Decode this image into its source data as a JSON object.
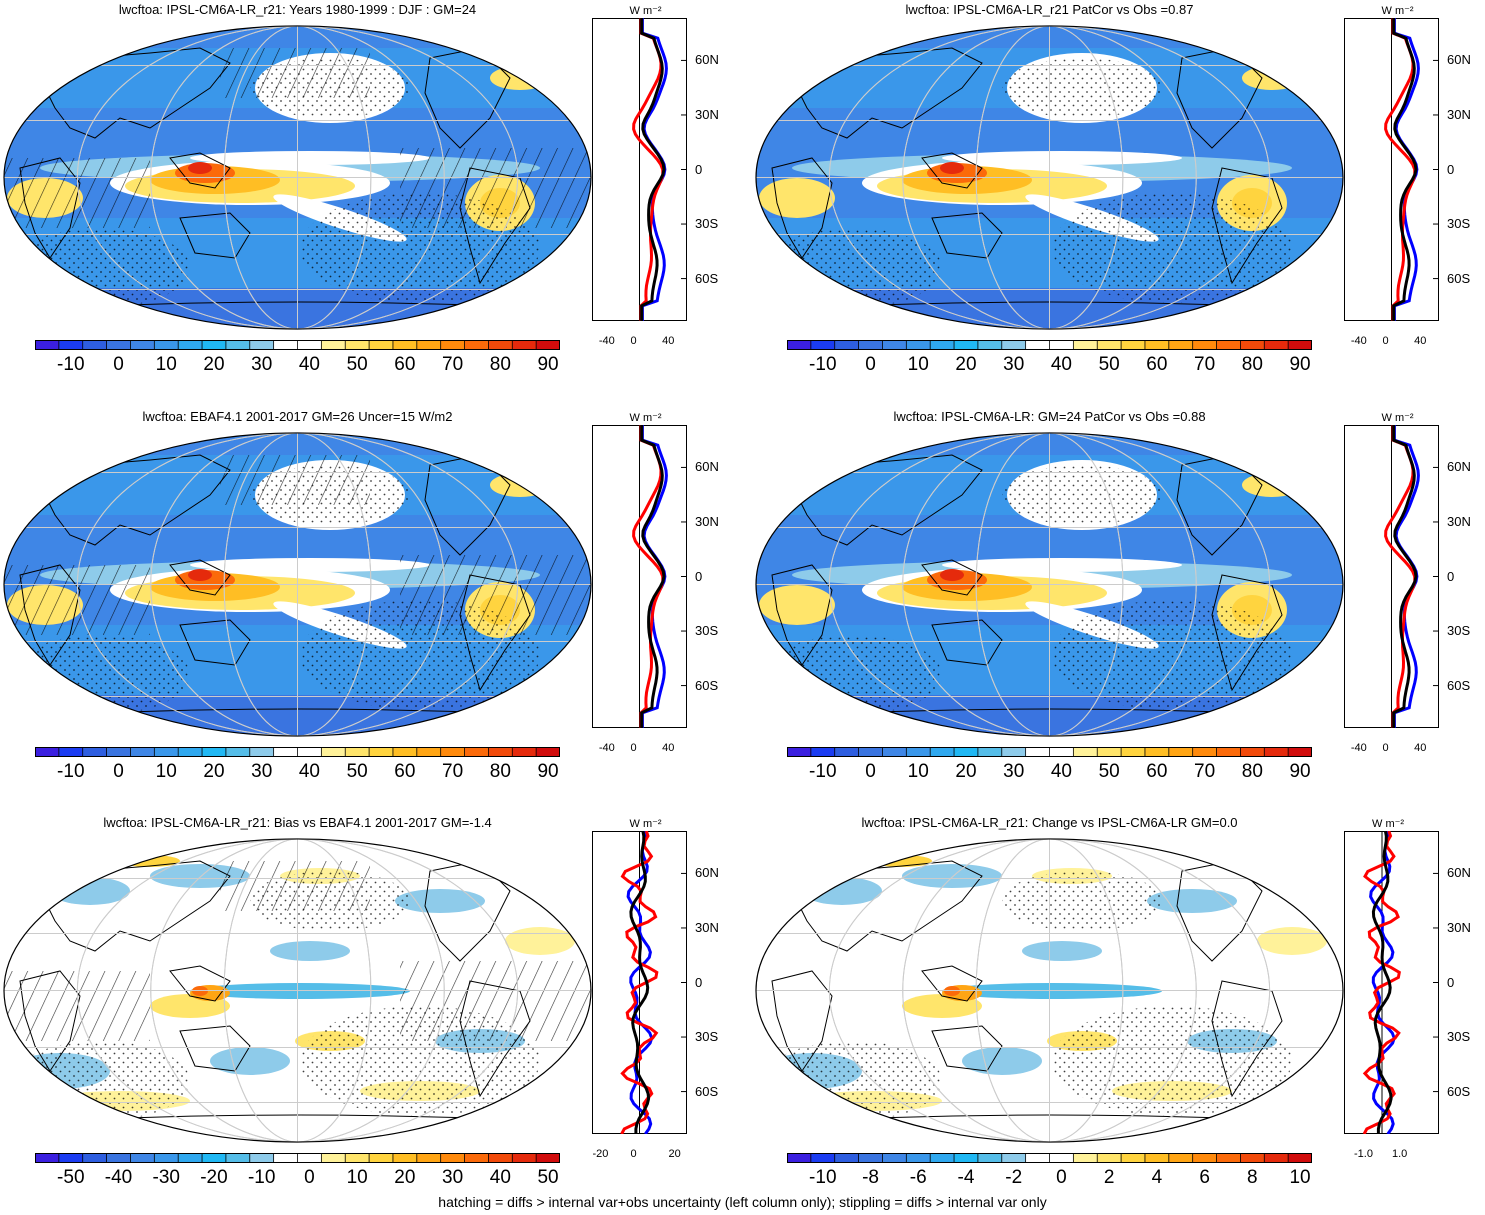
{
  "panels": [
    {
      "id": "top-left",
      "title": "lwcftoa: IPSL-CM6A-LR_r21: Years 1980-1999 : DJF : GM=24",
      "kind": "field",
      "colorbar": {
        "labels": [
          "-10",
          "0",
          "10",
          "20",
          "30",
          "40",
          "50",
          "60",
          "70",
          "80",
          "90"
        ]
      },
      "zonal": {
        "unit": "W m⁻²",
        "xticks": [
          "-40",
          "0",
          "40"
        ],
        "xrange": [
          -60,
          60
        ],
        "lat_labels": [
          "60N",
          "30N",
          "0",
          "30S",
          "60S"
        ]
      },
      "hatching": true,
      "stippling": true
    },
    {
      "id": "top-right",
      "title": "lwcftoa: IPSL-CM6A-LR_r21 PatCor vs Obs =0.87",
      "kind": "field",
      "colorbar": {
        "labels": [
          "-10",
          "0",
          "10",
          "20",
          "30",
          "40",
          "50",
          "60",
          "70",
          "80",
          "90"
        ]
      },
      "zonal": {
        "unit": "W m⁻²",
        "xticks": [
          "-40",
          "0",
          "40"
        ],
        "xrange": [
          -60,
          60
        ],
        "lat_labels": [
          "60N",
          "30N",
          "0",
          "30S",
          "60S"
        ]
      },
      "hatching": false,
      "stippling": true
    },
    {
      "id": "mid-left",
      "title": "lwcftoa: EBAF4.1 2001-2017 GM=26 Uncer=15 W/m2",
      "kind": "field",
      "colorbar": {
        "labels": [
          "-10",
          "0",
          "10",
          "20",
          "30",
          "40",
          "50",
          "60",
          "70",
          "80",
          "90"
        ]
      },
      "zonal": {
        "unit": "W m⁻²",
        "xticks": [
          "-40",
          "0",
          "40"
        ],
        "xrange": [
          -60,
          60
        ],
        "lat_labels": [
          "60N",
          "30N",
          "0",
          "30S",
          "60S"
        ]
      },
      "hatching": true,
      "stippling": true
    },
    {
      "id": "mid-right",
      "title": "lwcftoa: IPSL-CM6A-LR: GM=24 PatCor vs Obs =0.88",
      "kind": "field",
      "colorbar": {
        "labels": [
          "-10",
          "0",
          "10",
          "20",
          "30",
          "40",
          "50",
          "60",
          "70",
          "80",
          "90"
        ]
      },
      "zonal": {
        "unit": "W m⁻²",
        "xticks": [
          "-40",
          "0",
          "40"
        ],
        "xrange": [
          -60,
          60
        ],
        "lat_labels": [
          "60N",
          "30N",
          "0",
          "30S",
          "60S"
        ]
      },
      "hatching": false,
      "stippling": true
    },
    {
      "id": "bottom-left",
      "title": "lwcftoa: IPSL-CM6A-LR_r21: Bias vs EBAF4.1 2001-2017 GM=-1.4",
      "kind": "diff",
      "colorbar": {
        "labels": [
          "-50",
          "-40",
          "-30",
          "-20",
          "-10",
          "0",
          "10",
          "20",
          "30",
          "40",
          "50"
        ]
      },
      "zonal": {
        "unit": "W m⁻²",
        "xticks": [
          "-20",
          "0",
          "20"
        ],
        "xrange": [
          -25,
          25
        ],
        "lat_labels": [
          "60N",
          "30N",
          "0",
          "30S",
          "60S"
        ]
      },
      "hatching": true,
      "stippling": true
    },
    {
      "id": "bottom-right",
      "title": "lwcftoa: IPSL-CM6A-LR_r21: Change vs IPSL-CM6A-LR GM=0.0",
      "kind": "diff",
      "colorbar": {
        "labels": [
          "-10",
          "-8",
          "-6",
          "-4",
          "-2",
          "0",
          "2",
          "4",
          "6",
          "8",
          "10"
        ]
      },
      "zonal": {
        "unit": "W m⁻²",
        "xticks": [
          "-1.0",
          "1.0"
        ],
        "xrange": [
          -2,
          3
        ],
        "lat_labels": [
          "60N",
          "30N",
          "0",
          "30S",
          "60S"
        ]
      },
      "hatching": false,
      "stippling": true
    }
  ],
  "palette_field": [
    "#3b1fe0",
    "#1b3cf2",
    "#2e5ee0",
    "#3a74e0",
    "#3f86e6",
    "#3a97ea",
    "#2fa8ef",
    "#20b8f4",
    "#55bde8",
    "#8ecbea",
    "#ffffff",
    "#ffffff",
    "#fff29a",
    "#ffe56b",
    "#ffd43f",
    "#ffbe24",
    "#ffa514",
    "#ff8a0c",
    "#fb6a0a",
    "#f24a0a",
    "#e52a0c",
    "#d10c0c"
  ],
  "palette_diff": [
    "#3b1fe0",
    "#1b3cf2",
    "#2e5ee0",
    "#3a74e0",
    "#3f86e6",
    "#3a97ea",
    "#2fa8ef",
    "#20b8f4",
    "#55bde8",
    "#8ecbea",
    "#ffffff",
    "#ffffff",
    "#fff29a",
    "#ffe56b",
    "#ffd43f",
    "#ffbe24",
    "#ffa514",
    "#ff8a0c",
    "#fb6a0a",
    "#f24a0a",
    "#e52a0c",
    "#d10c0c"
  ],
  "legend_lines": {
    "model": "#000000",
    "obs": "#ff0000",
    "alt": "#0000ff"
  },
  "footnote": "hatching = diffs > internal var+obs uncertainty (left column only); stippling = diffs > internal var only"
}
